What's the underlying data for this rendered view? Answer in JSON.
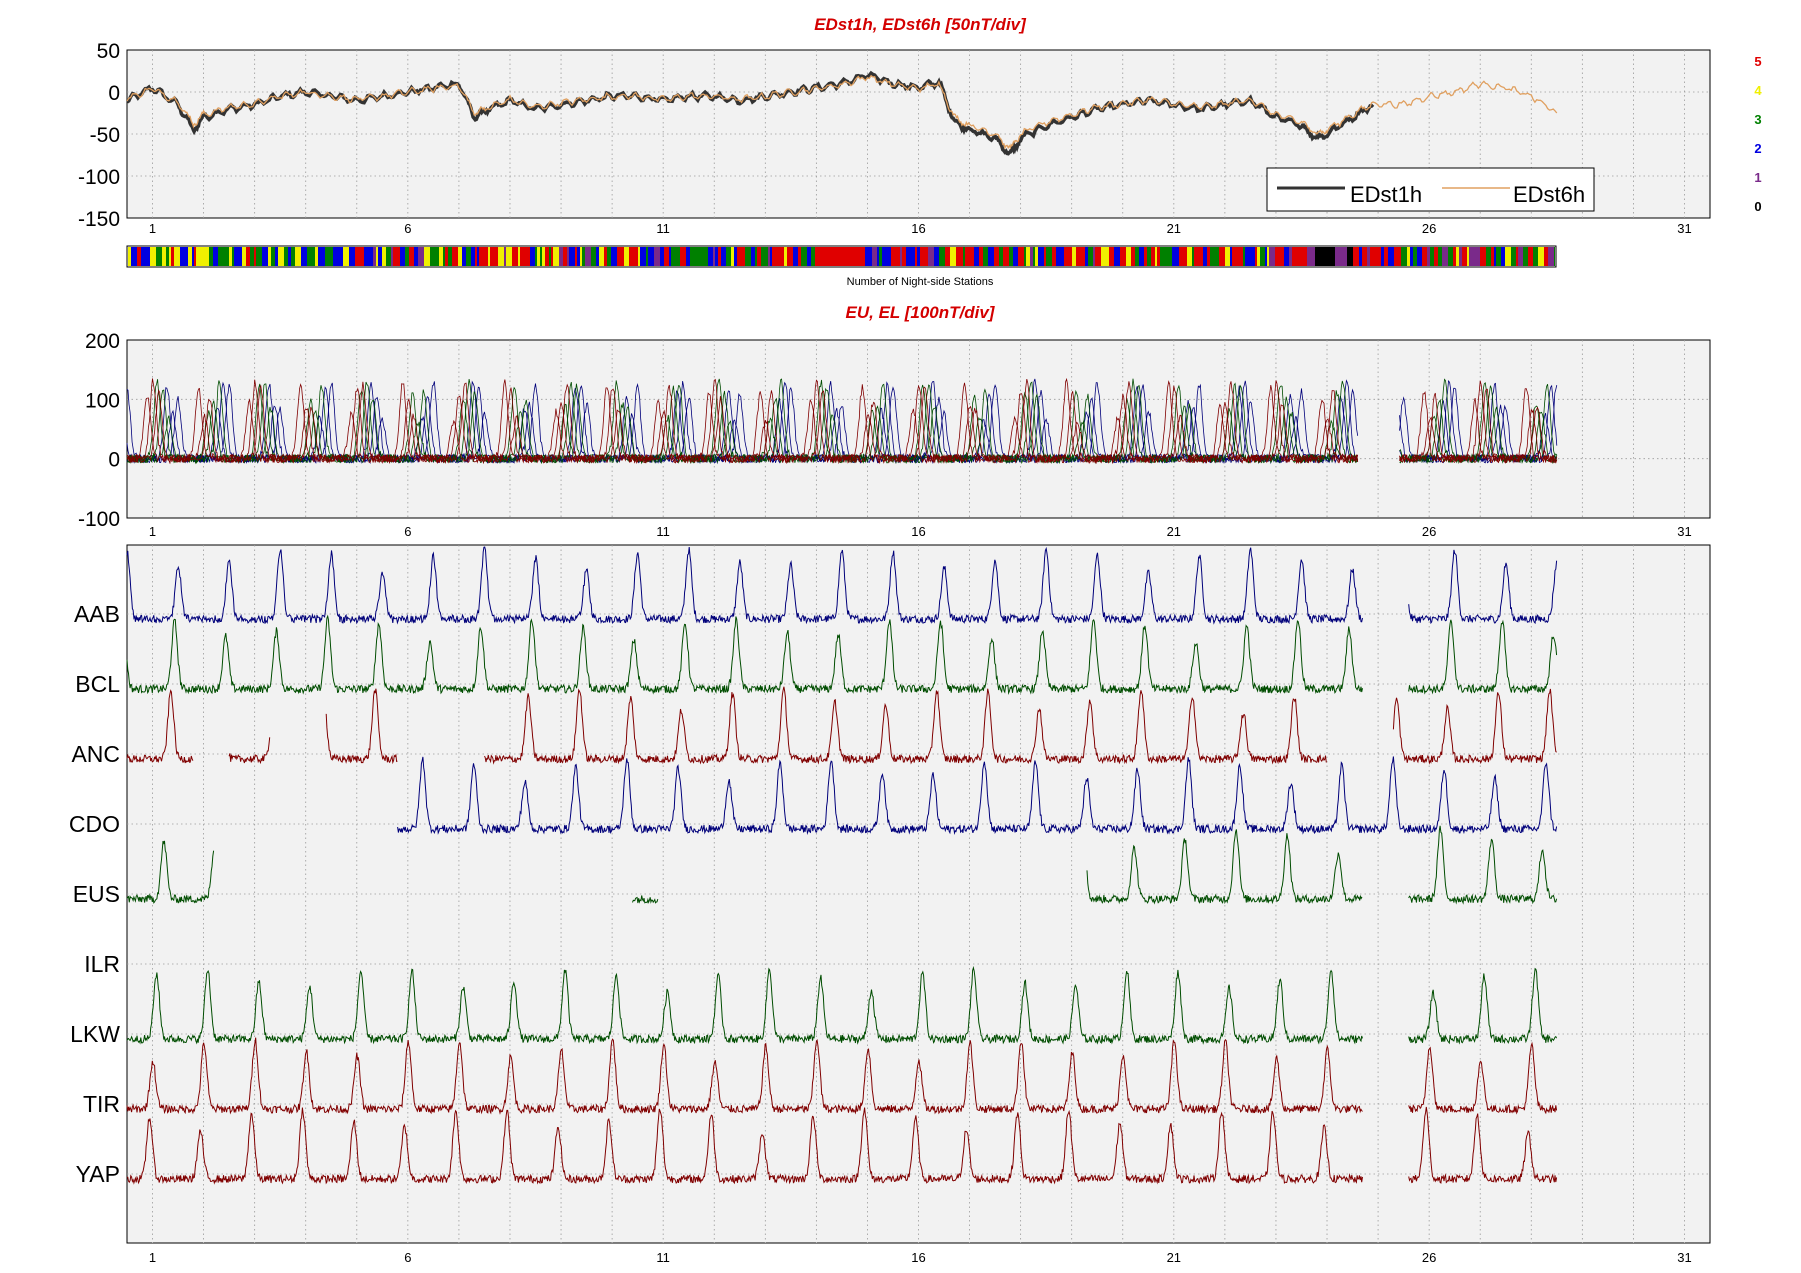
{
  "chart_data": [
    {
      "type": "line",
      "title": "EDst1h, EDst6h [50nT/div]",
      "xlabel": "",
      "ylabel": "",
      "x_ticks": [
        "1",
        "6",
        "11",
        "16",
        "21",
        "26",
        "31"
      ],
      "xlim": [
        0.5,
        31.5
      ],
      "ylim": [
        -150,
        50
      ],
      "y_ticks": [
        "50",
        "0",
        "-50",
        "-100",
        "-150"
      ],
      "grid": true,
      "legend_position": "bottom-right",
      "series": [
        {
          "name": "EDst1h",
          "color": "#333333",
          "x": [
            0.5,
            1.0,
            1.5,
            1.8,
            2.0,
            2.5,
            3.0,
            3.5,
            4.0,
            4.5,
            5.0,
            5.5,
            6.0,
            6.5,
            7.0,
            7.3,
            7.6,
            8.0,
            8.5,
            9.0,
            9.5,
            10.0,
            10.5,
            11.0,
            11.5,
            12.0,
            12.5,
            13.0,
            13.5,
            14.0,
            14.5,
            15.0,
            15.5,
            16.0,
            16.4,
            16.7,
            17.0,
            17.5,
            17.8,
            18.0,
            18.5,
            19.0,
            19.5,
            20.0,
            20.5,
            21.0,
            21.5,
            22.0,
            22.5,
            23.0,
            23.5,
            23.8,
            24.0,
            24.5,
            24.9
          ],
          "y": [
            -10,
            5,
            -15,
            -45,
            -30,
            -20,
            -15,
            -5,
            0,
            -5,
            -10,
            -5,
            0,
            5,
            10,
            -30,
            -20,
            -10,
            -20,
            -15,
            -10,
            -5,
            -5,
            -10,
            -5,
            -5,
            -10,
            -5,
            0,
            5,
            10,
            20,
            10,
            5,
            12,
            -35,
            -45,
            -55,
            -75,
            -55,
            -40,
            -30,
            -20,
            -15,
            -10,
            -15,
            -20,
            -15,
            -10,
            -30,
            -40,
            -55,
            -50,
            -30,
            -15
          ]
        },
        {
          "name": "EDst6h",
          "color": "#e0a060",
          "x": [
            0.5,
            1.0,
            1.5,
            1.8,
            2.0,
            2.5,
            3.0,
            3.5,
            4.0,
            4.5,
            5.0,
            5.5,
            6.0,
            6.5,
            7.0,
            7.3,
            7.6,
            8.0,
            8.5,
            9.0,
            9.5,
            10.0,
            10.5,
            11.0,
            11.5,
            12.0,
            12.5,
            13.0,
            13.5,
            14.0,
            14.5,
            15.0,
            15.5,
            16.0,
            16.4,
            16.7,
            17.0,
            17.5,
            17.8,
            18.0,
            18.5,
            19.0,
            19.5,
            20.0,
            20.5,
            21.0,
            21.5,
            22.0,
            22.5,
            23.0,
            23.5,
            23.8,
            24.0,
            24.5,
            24.9,
            25.5,
            26.0,
            26.5,
            27.0,
            27.5,
            28.0,
            28.5
          ],
          "y": [
            -8,
            4,
            -12,
            -38,
            -27,
            -18,
            -14,
            -5,
            0,
            -5,
            -9,
            -5,
            0,
            4,
            8,
            -25,
            -18,
            -9,
            -18,
            -13,
            -9,
            -5,
            -5,
            -9,
            -5,
            -5,
            -9,
            -5,
            0,
            4,
            9,
            18,
            9,
            4,
            10,
            -30,
            -40,
            -50,
            -68,
            -50,
            -36,
            -27,
            -18,
            -14,
            -9,
            -14,
            -18,
            -14,
            -9,
            -27,
            -36,
            -50,
            -45,
            -27,
            -14,
            -15,
            -5,
            0,
            10,
            5,
            -5,
            -25
          ]
        }
      ],
      "legend": [
        "EDst1h",
        "EDst6h"
      ]
    },
    {
      "type": "heatmap",
      "xlabel": "Number of Night-side Stations",
      "scale_labels": [
        "5",
        "4",
        "3",
        "2",
        "1",
        "0"
      ],
      "scale_colors": [
        "#e00000",
        "#f0f000",
        "#008000",
        "#0000e0",
        "#7a2a8a",
        "#000000"
      ]
    },
    {
      "type": "line",
      "title": "EU, EL   [100nT/div]",
      "xlabel": "",
      "ylabel": "",
      "x_ticks": [
        "1",
        "6",
        "11",
        "16",
        "21",
        "26",
        "31"
      ],
      "xlim": [
        0.5,
        31.5
      ],
      "ylim": [
        -100,
        200
      ],
      "y_ticks": [
        "200",
        "100",
        "0",
        "-100"
      ],
      "grid": true,
      "series_colors": [
        "#00007a",
        "#004d00",
        "#800000"
      ],
      "note_peaks_per_day": 1,
      "peak_range": [
        100,
        200
      ]
    },
    {
      "type": "line",
      "xlabel": "",
      "ylabel": "",
      "x_ticks": [
        "1",
        "6",
        "11",
        "16",
        "21",
        "26",
        "31"
      ],
      "xlim": [
        0.5,
        31.5
      ],
      "grid": true,
      "stations": [
        {
          "code": "AAB",
          "color": "#00007a",
          "segments": [
            [
              0.5,
              24.7
            ],
            [
              25.6,
              28.5
            ]
          ]
        },
        {
          "code": "BCL",
          "color": "#004d00",
          "segments": [
            [
              0.5,
              24.7
            ],
            [
              25.6,
              28.5
            ]
          ]
        },
        {
          "code": "ANC",
          "color": "#800000",
          "segments": [
            [
              0.5,
              1.8
            ],
            [
              2.5,
              3.3
            ],
            [
              4.4,
              5.8
            ],
            [
              7.5,
              24.0
            ],
            [
              25.3,
              28.5
            ]
          ]
        },
        {
          "code": "CDO",
          "color": "#00007a",
          "segments": [
            [
              5.8,
              28.5
            ]
          ]
        },
        {
          "code": "EUS",
          "color": "#004d00",
          "segments": [
            [
              0.5,
              2.2
            ],
            [
              10.4,
              10.9
            ],
            [
              19.3,
              24.7
            ],
            [
              25.6,
              28.5
            ]
          ]
        },
        {
          "code": "ILR",
          "color": "#004d00",
          "segments": []
        },
        {
          "code": "LKW",
          "color": "#004d00",
          "segments": [
            [
              0.5,
              24.7
            ],
            [
              25.6,
              28.5
            ]
          ]
        },
        {
          "code": "TIR",
          "color": "#800000",
          "segments": [
            [
              0.5,
              24.7
            ],
            [
              25.6,
              28.5
            ]
          ]
        },
        {
          "code": "YAP",
          "color": "#800000",
          "segments": [
            [
              0.5,
              24.7
            ],
            [
              25.6,
              28.5
            ]
          ]
        }
      ]
    }
  ]
}
